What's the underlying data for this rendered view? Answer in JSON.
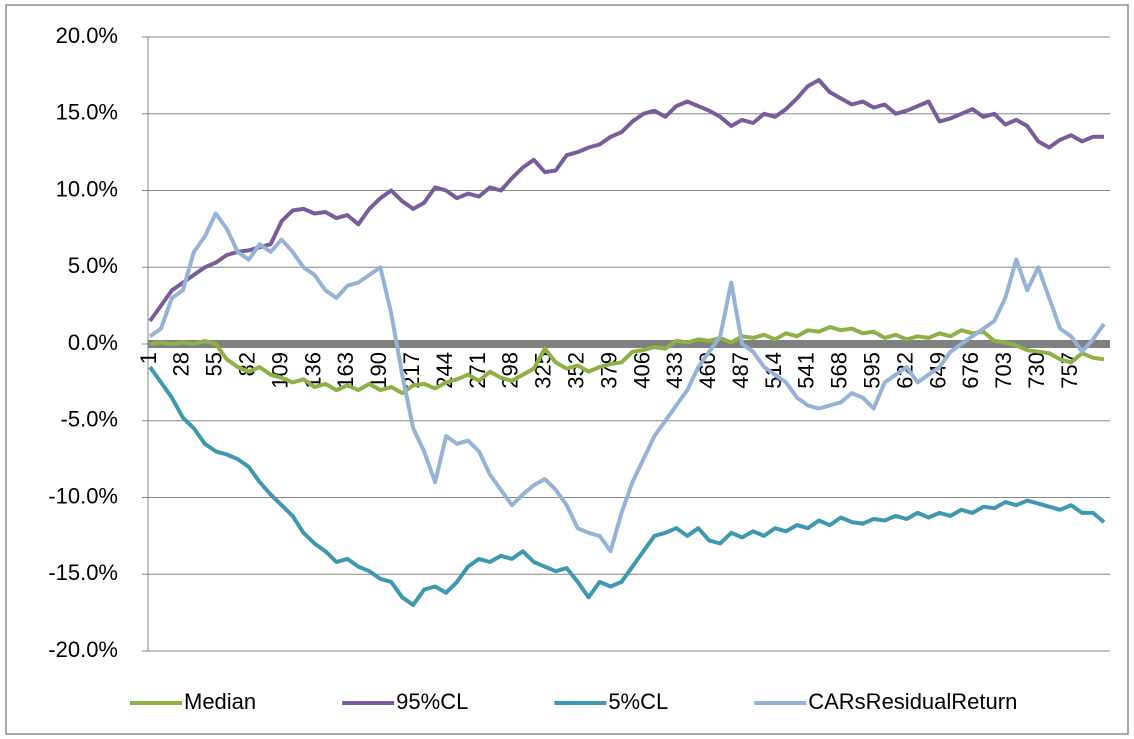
{
  "chart_data": {
    "type": "line",
    "x": [
      1,
      10,
      19,
      28,
      37,
      46,
      55,
      64,
      73,
      82,
      91,
      100,
      109,
      118,
      127,
      136,
      145,
      154,
      163,
      172,
      181,
      190,
      199,
      208,
      217,
      226,
      235,
      244,
      253,
      262,
      271,
      280,
      289,
      298,
      307,
      316,
      325,
      334,
      343,
      352,
      361,
      370,
      379,
      388,
      397,
      406,
      415,
      424,
      433,
      442,
      451,
      460,
      469,
      478,
      487,
      496,
      505,
      514,
      523,
      532,
      541,
      550,
      559,
      568,
      577,
      586,
      595,
      604,
      613,
      622,
      631,
      640,
      649,
      658,
      667,
      676,
      685,
      694,
      703,
      712,
      721,
      730,
      739,
      748,
      757,
      766,
      775,
      784
    ],
    "xlim": [
      1,
      784
    ],
    "xticks": [
      1,
      28,
      55,
      82,
      109,
      136,
      163,
      190,
      217,
      244,
      271,
      298,
      325,
      352,
      379,
      406,
      433,
      460,
      487,
      514,
      541,
      568,
      595,
      622,
      649,
      676,
      703,
      730,
      757
    ],
    "ylim": [
      -20,
      20
    ],
    "yticks": [
      {
        "value": -20,
        "label": "-20.0%"
      },
      {
        "value": -15,
        "label": "-15.0%"
      },
      {
        "value": -10,
        "label": "-10.0%"
      },
      {
        "value": -5,
        "label": "-5.0%"
      },
      {
        "value": 0,
        "label": "0.0%"
      },
      {
        "value": 5,
        "label": "5.0%"
      },
      {
        "value": 10,
        "label": "10.0%"
      },
      {
        "value": 15,
        "label": "15.0%"
      },
      {
        "value": 20,
        "label": "20.0%"
      }
    ],
    "grid": true,
    "legend": "bottom",
    "series": [
      {
        "name": "Median",
        "color": "#8eb045",
        "values": [
          0,
          0.1,
          0,
          0.1,
          0,
          0.2,
          0,
          -1,
          -1.5,
          -1.8,
          -1.5,
          -2,
          -2.2,
          -2.5,
          -2.3,
          -2.8,
          -2.6,
          -3,
          -2.7,
          -3,
          -2.6,
          -3,
          -2.8,
          -3.2,
          -2.7,
          -2.6,
          -2.9,
          -2.5,
          -2.3,
          -2,
          -2.4,
          -1.8,
          -2.2,
          -2.4,
          -2,
          -1.6,
          -0.3,
          -1.2,
          -1.6,
          -1.4,
          -1.8,
          -1.5,
          -1.3,
          -1.2,
          -0.5,
          -0.4,
          -0.2,
          -0.3,
          0.2,
          0.1,
          0.3,
          0.2,
          0.4,
          0.1,
          0.5,
          0.4,
          0.6,
          0.3,
          0.7,
          0.5,
          0.9,
          0.8,
          1.1,
          0.9,
          1,
          0.7,
          0.8,
          0.4,
          0.6,
          0.3,
          0.5,
          0.4,
          0.7,
          0.5,
          0.9,
          0.7,
          0.8,
          0.2,
          0.1,
          -0.1,
          -0.4,
          -0.5,
          -0.6,
          -1,
          -1.2,
          -0.6,
          -0.9,
          -1
        ]
      },
      {
        "name": "95%CL",
        "color": "#7a5b9c",
        "values": [
          1.5,
          2.5,
          3.5,
          4,
          4.5,
          5,
          5.3,
          5.8,
          6,
          6.1,
          6.3,
          6.5,
          8,
          8.7,
          8.8,
          8.5,
          8.6,
          8.2,
          8.4,
          7.8,
          8.8,
          9.5,
          10,
          9.3,
          8.8,
          9.2,
          10.2,
          10,
          9.5,
          9.8,
          9.6,
          10.2,
          10,
          10.8,
          11.5,
          12,
          11.2,
          11.3,
          12.3,
          12.5,
          12.8,
          13,
          13.5,
          13.8,
          14.5,
          15,
          15.2,
          14.8,
          15.5,
          15.8,
          15.5,
          15.2,
          14.8,
          14.2,
          14.6,
          14.4,
          15,
          14.8,
          15.3,
          16,
          16.8,
          17.2,
          16.4,
          16,
          15.6,
          15.8,
          15.4,
          15.6,
          15,
          15.2,
          15.5,
          15.8,
          14.5,
          14.7,
          15,
          15.3,
          14.8,
          15,
          14.3,
          14.6,
          14.2,
          13.2,
          12.8,
          13.3,
          13.6,
          13.2,
          13.5,
          13.5
        ]
      },
      {
        "name": "5%CL",
        "color": "#3e99b0",
        "values": [
          -1.5,
          -2.5,
          -3.5,
          -4.8,
          -5.5,
          -6.5,
          -7,
          -7.2,
          -7.5,
          -8,
          -9,
          -9.8,
          -10.5,
          -11.2,
          -12.3,
          -13,
          -13.5,
          -14.2,
          -14,
          -14.5,
          -14.8,
          -15.3,
          -15.5,
          -16.5,
          -17,
          -16,
          -15.8,
          -16.2,
          -15.5,
          -14.5,
          -14,
          -14.2,
          -13.8,
          -14,
          -13.5,
          -14.2,
          -14.5,
          -14.8,
          -14.6,
          -15.5,
          -16.5,
          -15.5,
          -15.8,
          -15.5,
          -14.5,
          -13.5,
          -12.5,
          -12.3,
          -12,
          -12.5,
          -12,
          -12.8,
          -13,
          -12.3,
          -12.6,
          -12.2,
          -12.5,
          -12,
          -12.2,
          -11.8,
          -12,
          -11.5,
          -11.8,
          -11.3,
          -11.6,
          -11.7,
          -11.4,
          -11.5,
          -11.2,
          -11.4,
          -11,
          -11.3,
          -11,
          -11.2,
          -10.8,
          -11,
          -10.6,
          -10.7,
          -10.3,
          -10.5,
          -10.2,
          -10.4,
          -10.6,
          -10.8,
          -10.5,
          -11,
          -11,
          -11.6
        ]
      },
      {
        "name": "CARsResidualReturn",
        "color": "#95b3d7",
        "values": [
          0.5,
          1,
          3,
          3.5,
          6,
          7,
          8.5,
          7.5,
          6,
          5.5,
          6.5,
          6,
          6.8,
          6,
          5,
          4.5,
          3.5,
          3,
          3.8,
          4,
          4.5,
          5,
          2,
          -2,
          -5.5,
          -7,
          -9,
          -6,
          -6.5,
          -6.3,
          -7,
          -8.5,
          -9.5,
          -10.5,
          -9.8,
          -9.2,
          -8.8,
          -9.5,
          -10.5,
          -12,
          -12.3,
          -12.5,
          -13.5,
          -11,
          -9,
          -7.5,
          -6,
          -5,
          -4,
          -3,
          -1.5,
          -0.5,
          0.5,
          4,
          0,
          -0.5,
          -1.5,
          -2,
          -2.5,
          -3.5,
          -4,
          -4.2,
          -4,
          -3.8,
          -3.2,
          -3.5,
          -4.2,
          -2.5,
          -2,
          -1.5,
          -2.5,
          -2,
          -1.5,
          -0.5,
          0,
          0.5,
          1,
          1.5,
          3,
          5.5,
          3.5,
          5,
          3,
          1,
          0.5,
          -0.5,
          0.3,
          1.3
        ]
      }
    ]
  }
}
